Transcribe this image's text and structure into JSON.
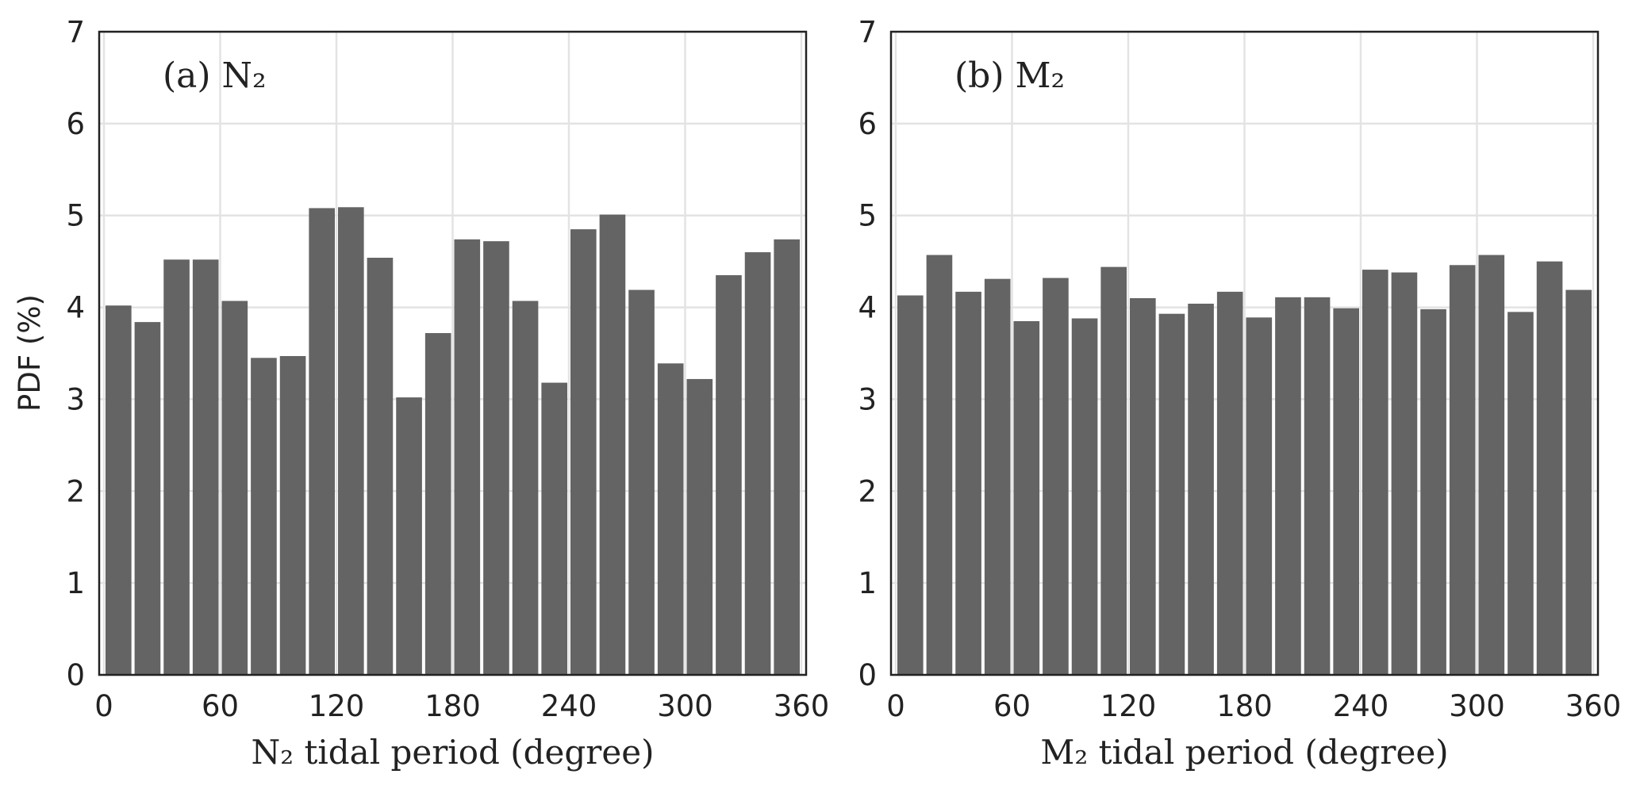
{
  "chart_data": [
    {
      "type": "bar",
      "panel_label": "(a) N₂",
      "xlabel": "N₂ tidal period (degree)",
      "ylabel": "PDF (%)",
      "xlim": [
        0,
        360
      ],
      "ylim": [
        0,
        7
      ],
      "xticks": [
        0,
        60,
        120,
        180,
        240,
        300,
        360
      ],
      "yticks": [
        0,
        1,
        2,
        3,
        4,
        5,
        6,
        7
      ],
      "grid": true,
      "bin_width": 15,
      "bin_starts": [
        0,
        15,
        30,
        45,
        60,
        75,
        90,
        105,
        120,
        135,
        150,
        165,
        180,
        195,
        210,
        225,
        240,
        255,
        270,
        285,
        300,
        315,
        330,
        345
      ],
      "values": [
        4.02,
        3.84,
        4.52,
        4.52,
        4.07,
        3.45,
        3.47,
        5.08,
        5.09,
        4.54,
        3.02,
        3.72,
        4.74,
        4.72,
        4.07,
        3.18,
        4.85,
        5.01,
        4.19,
        3.39,
        3.22,
        4.35,
        4.6,
        4.74
      ],
      "bar_color": "#646464"
    },
    {
      "type": "bar",
      "panel_label": "(b) M₂",
      "xlabel": "M₂ tidal period (degree)",
      "ylabel": "",
      "xlim": [
        0,
        360
      ],
      "ylim": [
        0,
        7
      ],
      "xticks": [
        0,
        60,
        120,
        180,
        240,
        300,
        360
      ],
      "yticks": [
        0,
        1,
        2,
        3,
        4,
        5,
        6,
        7
      ],
      "grid": true,
      "bin_width": 15,
      "bin_starts": [
        0,
        15,
        30,
        45,
        60,
        75,
        90,
        105,
        120,
        135,
        150,
        165,
        180,
        195,
        210,
        225,
        240,
        255,
        270,
        285,
        300,
        315,
        330,
        345
      ],
      "values": [
        4.13,
        4.57,
        4.17,
        4.31,
        3.85,
        4.32,
        3.88,
        4.44,
        4.1,
        3.93,
        4.04,
        4.17,
        3.89,
        4.11,
        4.11,
        3.99,
        4.41,
        4.38,
        3.98,
        4.46,
        4.57,
        3.95,
        4.5,
        4.19
      ],
      "bar_color": "#646464"
    }
  ]
}
